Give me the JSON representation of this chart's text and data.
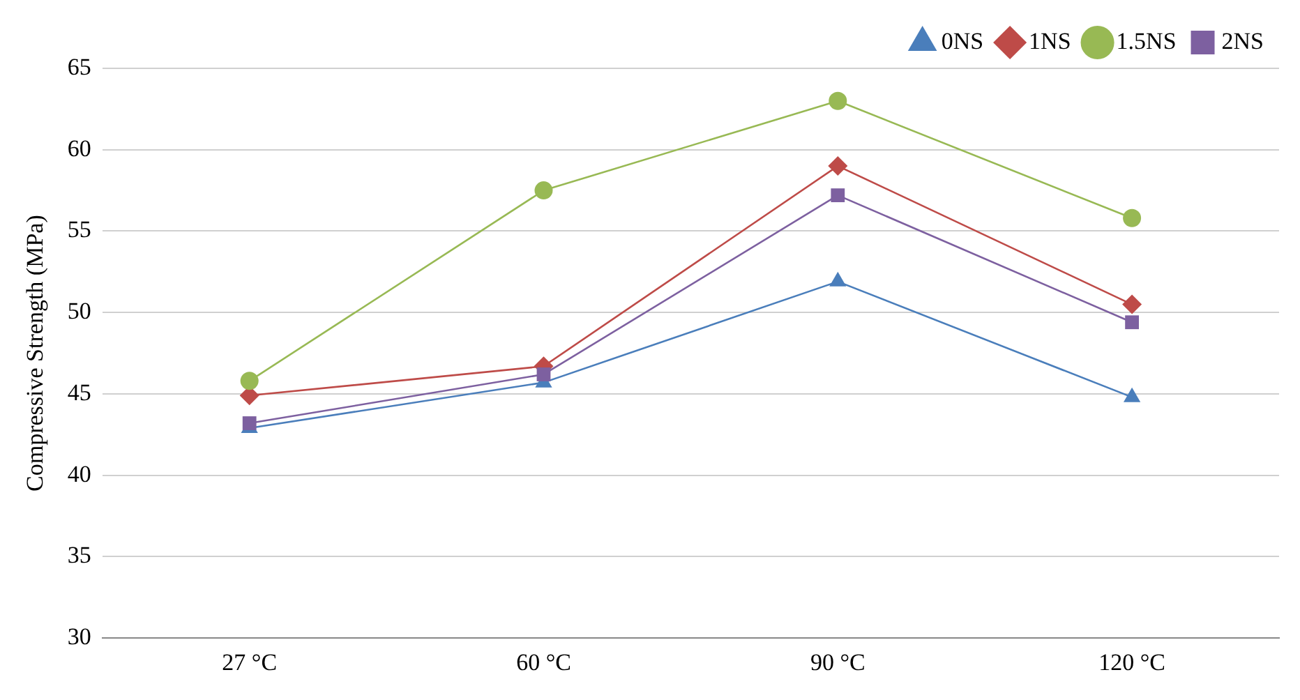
{
  "chart_data": {
    "type": "line",
    "ylabel": "Compressive Strength (MPa)",
    "categories": [
      "27 °C",
      "60 °C",
      "90 °C",
      "120 °C"
    ],
    "series": [
      {
        "name": "0NS",
        "color": "#4a7ebb",
        "marker": "triangle",
        "values": [
          42.9,
          45.7,
          51.9,
          44.8
        ]
      },
      {
        "name": "1NS",
        "color": "#be4b48",
        "marker": "diamond",
        "values": [
          44.9,
          46.7,
          59.0,
          50.5
        ]
      },
      {
        "name": "1.5NS",
        "color": "#98b954",
        "marker": "circle",
        "values": [
          45.8,
          57.5,
          63.0,
          55.8
        ]
      },
      {
        "name": "2NS",
        "color": "#7d60a0",
        "marker": "square",
        "values": [
          43.2,
          46.2,
          57.2,
          49.4
        ]
      }
    ],
    "ylim": [
      30,
      65
    ],
    "yticks": [
      30,
      35,
      40,
      45,
      50,
      55,
      60,
      65
    ],
    "grid": "y",
    "legend": "top right",
    "line_style": "solid"
  }
}
